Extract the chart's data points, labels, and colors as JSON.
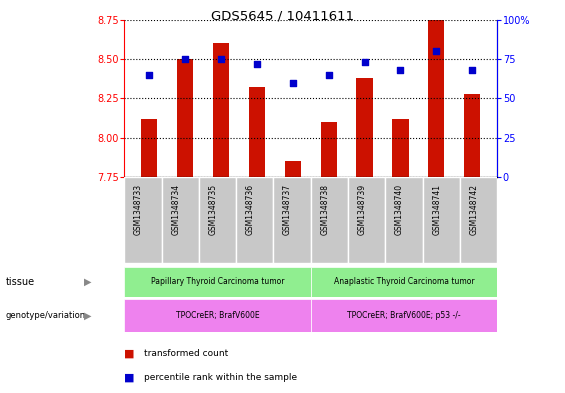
{
  "title": "GDS5645 / 10411611",
  "samples": [
    "GSM1348733",
    "GSM1348734",
    "GSM1348735",
    "GSM1348736",
    "GSM1348737",
    "GSM1348738",
    "GSM1348739",
    "GSM1348740",
    "GSM1348741",
    "GSM1348742"
  ],
  "transformed_count": [
    8.12,
    8.5,
    8.6,
    8.32,
    7.85,
    8.1,
    8.38,
    8.12,
    8.75,
    8.28
  ],
  "percentile_rank": [
    65,
    75,
    75,
    72,
    60,
    65,
    73,
    68,
    80,
    68
  ],
  "ylim_left": [
    7.75,
    8.75
  ],
  "ylim_right": [
    0,
    100
  ],
  "yticks_left": [
    7.75,
    8.0,
    8.25,
    8.5,
    8.75
  ],
  "yticks_right": [
    0,
    25,
    50,
    75,
    100
  ],
  "ytick_labels_right": [
    "0",
    "25",
    "50",
    "75",
    "100%"
  ],
  "bar_color": "#cc1100",
  "dot_color": "#0000cc",
  "bar_bottom": 7.75,
  "tissue_labels": [
    "Papillary Thyroid Carcinoma tumor",
    "Anaplastic Thyroid Carcinoma tumor"
  ],
  "genotype_labels": [
    "TPOCreER; BrafV600E",
    "TPOCreER; BrafV600E; p53 -/-"
  ],
  "tissue_color": "#90ee90",
  "genotype_color": "#ee82ee",
  "label_tissue": "tissue",
  "label_genotype": "genotype/variation",
  "legend_red": "transformed count",
  "legend_blue": "percentile rank within the sample"
}
